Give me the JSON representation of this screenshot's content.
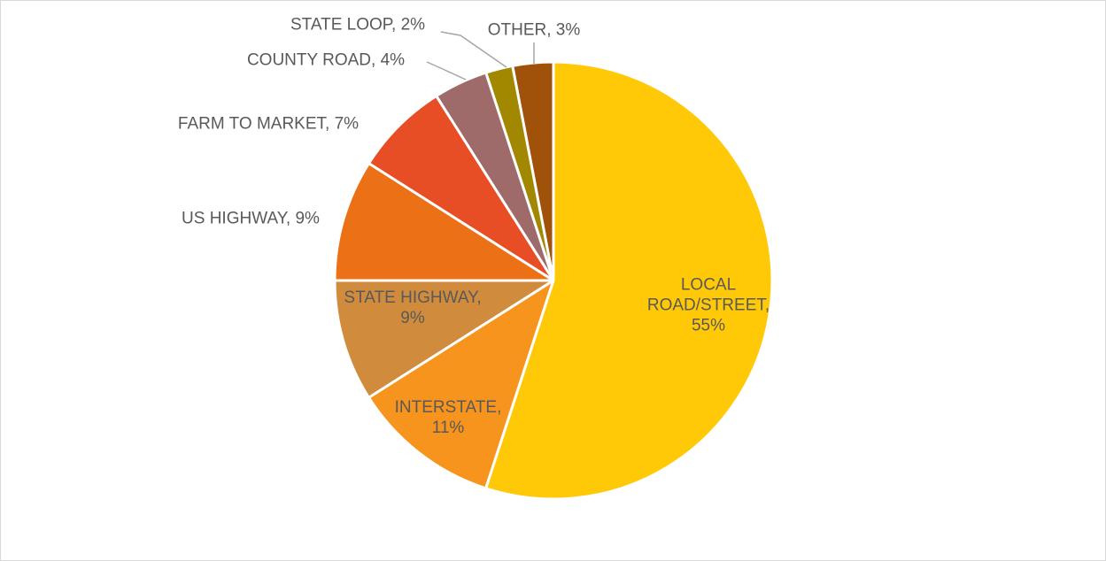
{
  "chart_data": {
    "type": "pie",
    "categories": [
      "LOCAL ROAD/STREET",
      "INTERSTATE",
      "STATE HIGHWAY",
      "US HIGHWAY",
      "FARM TO MARKET",
      "COUNTY ROAD",
      "STATE LOOP",
      "OTHER"
    ],
    "values": [
      55,
      11,
      9,
      9,
      7,
      4,
      2,
      3
    ],
    "value_labels": [
      "55%",
      "11%",
      "9%",
      "9%",
      "7%",
      "4%",
      "2%",
      "3%"
    ],
    "colors": [
      "#FFC907",
      "#F7941D",
      "#D08B3D",
      "#EC7016",
      "#E84E25",
      "#9E6A6A",
      "#A28800",
      "#A0520B"
    ]
  }
}
